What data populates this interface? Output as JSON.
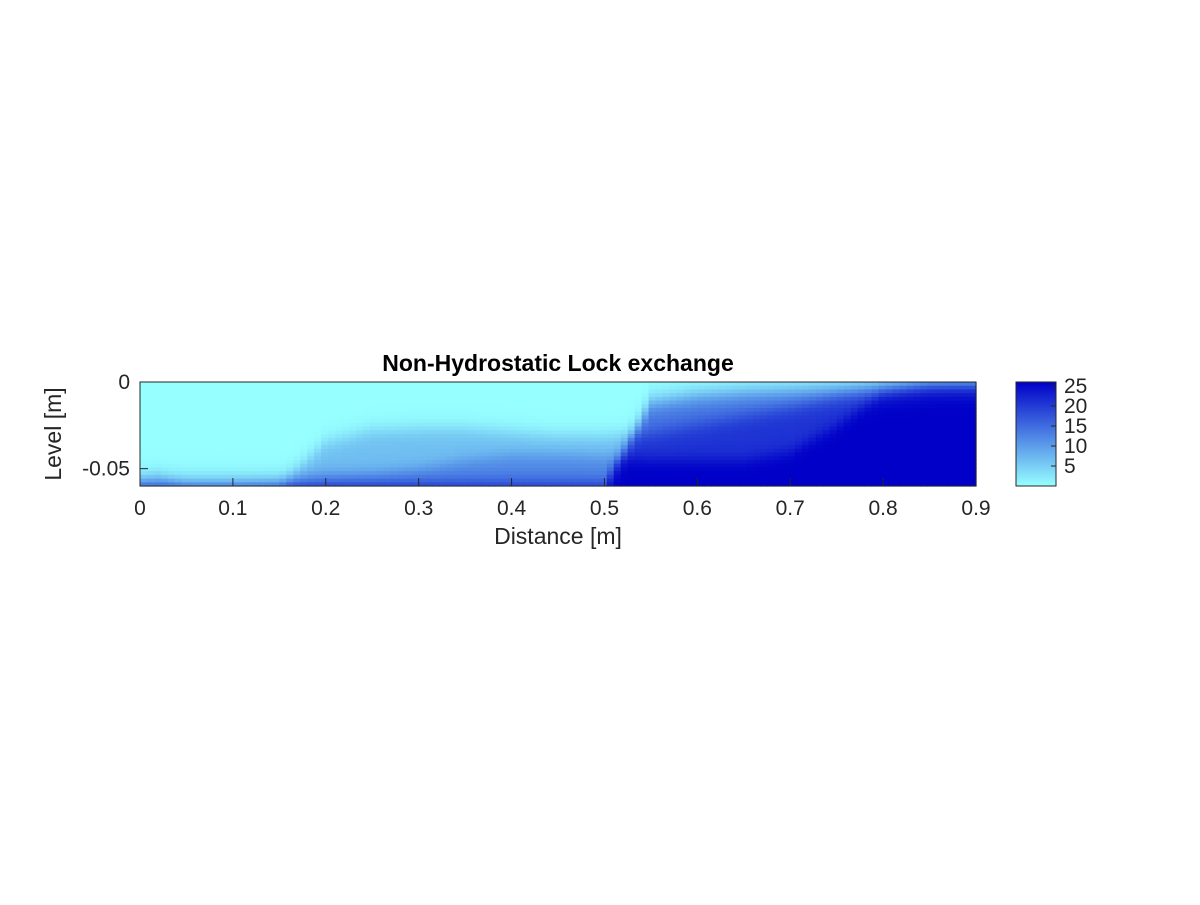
{
  "chart_data": {
    "type": "heatmap",
    "title": "Non-Hydrostatic Lock exchange",
    "xlabel": "Distance [m]",
    "ylabel": "Level [m]",
    "xlim": [
      0,
      0.9
    ],
    "ylim": [
      -0.06,
      0
    ],
    "x_ticks": [
      0,
      0.1,
      0.2,
      0.3,
      0.4,
      0.5,
      0.6,
      0.7,
      0.8,
      0.9
    ],
    "x_tick_labels": [
      "0",
      "0.1",
      "0.2",
      "0.3",
      "0.4",
      "0.5",
      "0.6",
      "0.7",
      "0.8",
      "0.9"
    ],
    "y_ticks": [
      0,
      -0.05
    ],
    "y_tick_labels": [
      "0",
      "-0.05"
    ],
    "colorbar": {
      "range": [
        0,
        26
      ],
      "ticks": [
        5,
        10,
        15,
        20,
        25
      ],
      "tick_labels": [
        "5",
        "10",
        "15",
        "20",
        "25"
      ],
      "color_low": "#96ffff",
      "color_high": "#0000c8"
    },
    "interface_profiles": {
      "x": [
        0,
        0.02,
        0.05,
        0.1,
        0.15,
        0.2,
        0.25,
        0.3,
        0.35,
        0.4,
        0.45,
        0.5,
        0.55,
        0.6,
        0.65,
        0.7,
        0.75,
        0.8,
        0.85,
        0.88,
        0.9
      ],
      "upper_front_depth": [
        -0.06,
        -0.06,
        -0.06,
        -0.06,
        -0.06,
        -0.06,
        -0.06,
        -0.06,
        -0.06,
        -0.06,
        -0.06,
        -0.06,
        -0.012,
        -0.008,
        -0.006,
        -0.005,
        -0.004,
        -0.003,
        -0.001,
        -0.0005,
        -0.0005
      ],
      "middle_interface_depth": [
        -0.06,
        -0.06,
        -0.06,
        -0.06,
        -0.06,
        -0.035,
        -0.028,
        -0.027,
        -0.027,
        -0.029,
        -0.031,
        -0.031,
        -0.03,
        -0.025,
        -0.02,
        -0.015,
        -0.008,
        -0.003,
        -0.001,
        -0.001,
        -0.001
      ],
      "lower_interface_depth": [
        -0.056,
        -0.054,
        -0.06,
        -0.06,
        -0.058,
        -0.054,
        -0.053,
        -0.05,
        -0.045,
        -0.042,
        -0.042,
        -0.043,
        -0.045,
        -0.045,
        -0.045,
        -0.04,
        -0.025,
        -0.006,
        -0.001,
        -0.001,
        -0.001
      ]
    }
  }
}
